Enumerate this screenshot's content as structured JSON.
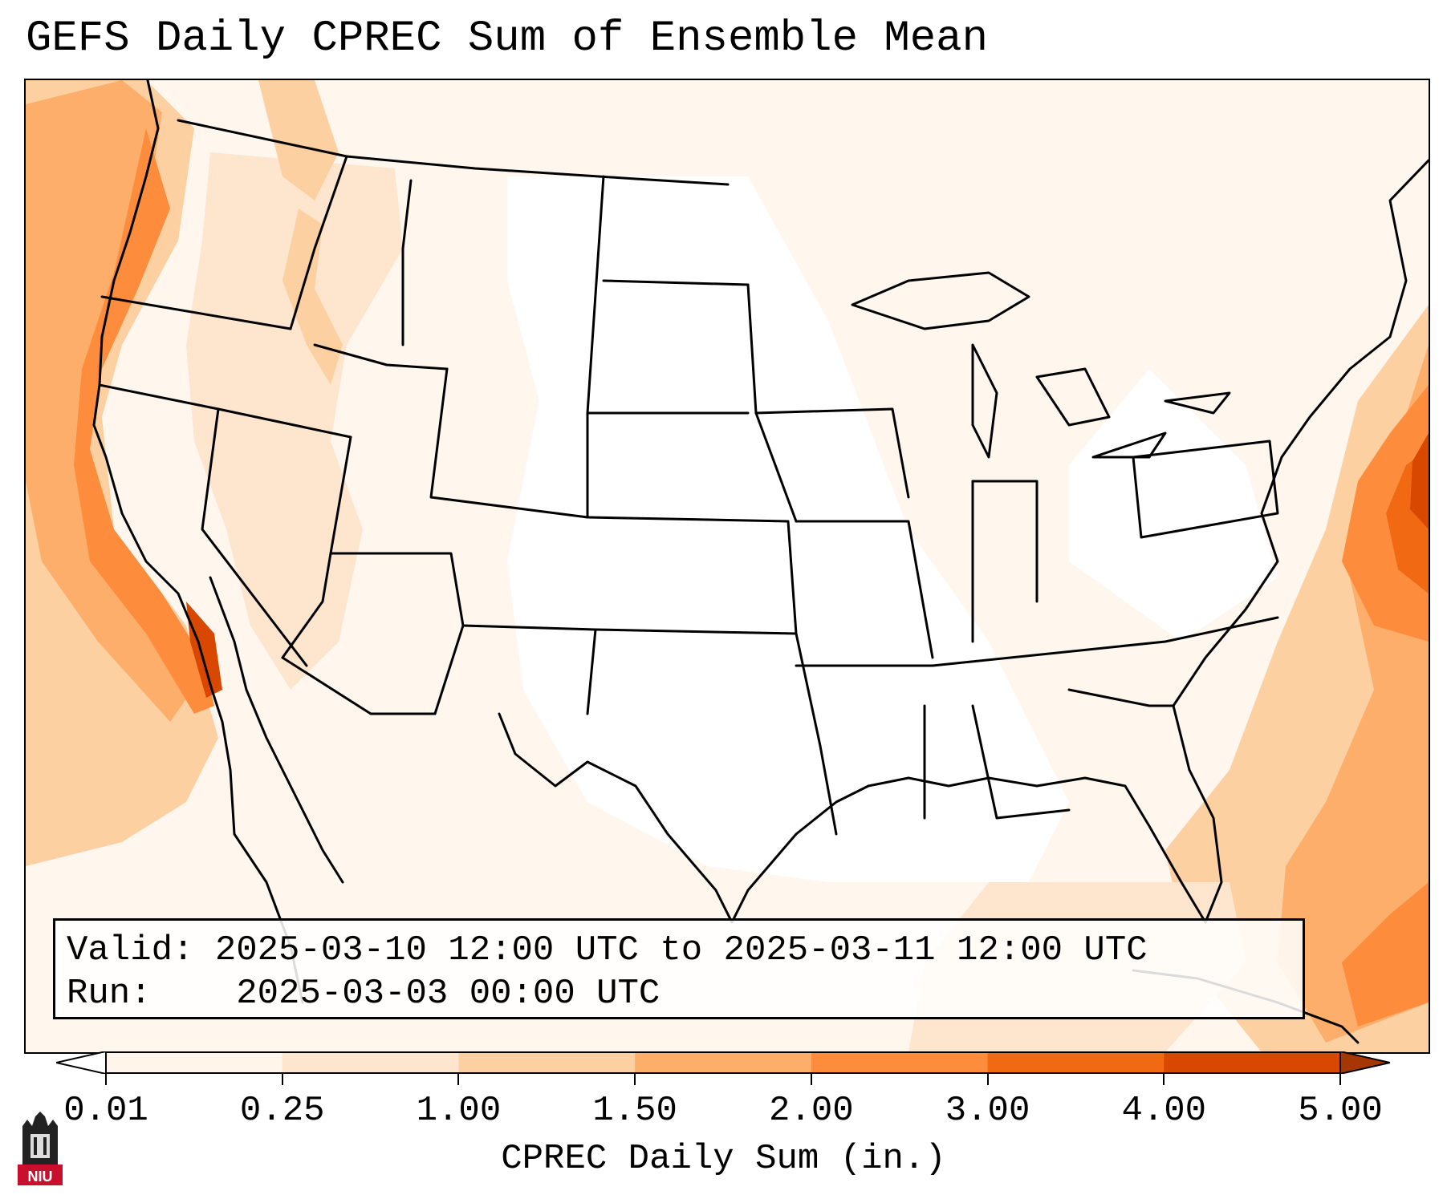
{
  "title": "GEFS Daily CPREC Sum of Ensemble Mean",
  "info": {
    "valid_label": "Valid:",
    "valid_value": "2025-03-10 12:00 UTC to 2025-03-11 12:00 UTC",
    "run_label": "Run:",
    "run_value": "2025-03-03 00:00 UTC"
  },
  "colorbar": {
    "label": "CPREC Daily Sum (in.)",
    "ticks": [
      "0.01",
      "0.25",
      "1.00",
      "1.50",
      "2.00",
      "3.00",
      "4.00",
      "5.00"
    ],
    "colors": [
      "#fff5eb",
      "#fee6ce",
      "#fdd0a2",
      "#fdae6b",
      "#fd8d3c",
      "#f16913",
      "#d94801",
      "#a63603"
    ],
    "under_color": "#ffffff",
    "over_color": "#7f2704"
  },
  "logo": {
    "text": "NIU"
  }
}
